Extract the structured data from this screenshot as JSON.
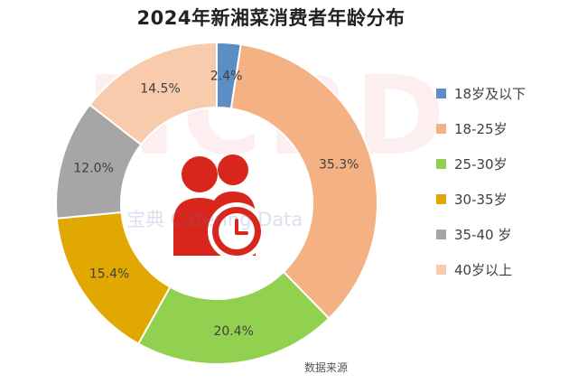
{
  "title": "2024年新湘菜消费者年龄分布",
  "watermark": {
    "big_text": "NCBD",
    "line_text": "宝典 Catering Data"
  },
  "source_text": "数据来源",
  "chart_data": {
    "type": "pie",
    "style": "donut",
    "title": "2024年新湘菜消费者年龄分布",
    "center_icon": "people-clock-icon",
    "legend_position": "right",
    "slices": [
      {
        "label": "18岁及以下",
        "value": 2.4,
        "display": "2.4%",
        "color": "#5b8ec4"
      },
      {
        "label": "18-25岁",
        "value": 35.3,
        "display": "35.3%",
        "color": "#f4b183"
      },
      {
        "label": "25-30岁",
        "value": 20.4,
        "display": "20.4%",
        "color": "#92d050"
      },
      {
        "label": "30-35岁",
        "value": 15.4,
        "display": "15.4%",
        "color": "#e0a800"
      },
      {
        "label": "35-40 岁",
        "value": 12.0,
        "display": "12.0%",
        "color": "#a6a6a6"
      },
      {
        "label": "40岁以上",
        "value": 14.5,
        "display": "14.5%",
        "color": "#f8cbad"
      }
    ]
  }
}
